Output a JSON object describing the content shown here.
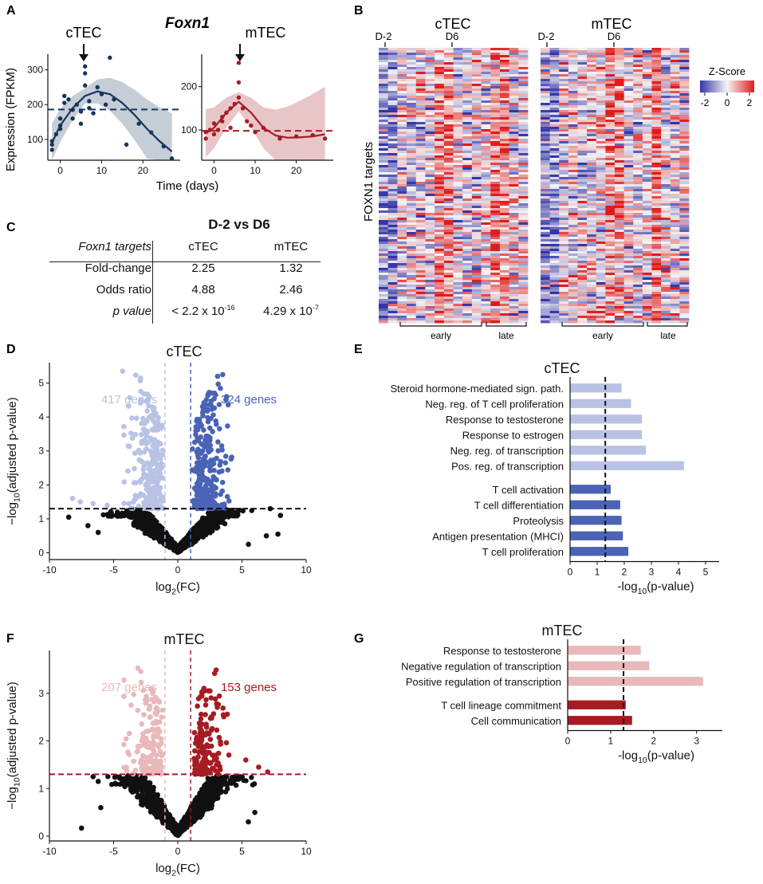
{
  "panels": {
    "A": {
      "letter": "A",
      "gene": "Foxn1",
      "ylabel": "Expression (FPKM)",
      "xlabel": "Time (days)",
      "cTEC": {
        "label": "cTEC",
        "color": "#17365d",
        "baseline": 186,
        "yticks": [
          100,
          200,
          300
        ],
        "ylim": [
          40,
          345
        ],
        "xticks": [
          0,
          10,
          20
        ],
        "xlim": [
          -3,
          29
        ],
        "points": [
          [
            -2,
            85
          ],
          [
            -2,
            70
          ],
          [
            -2,
            95
          ],
          [
            -1,
            115
          ],
          [
            0,
            140
          ],
          [
            0,
            130
          ],
          [
            0,
            160
          ],
          [
            1,
            205
          ],
          [
            1,
            225
          ],
          [
            2,
            215
          ],
          [
            3,
            185
          ],
          [
            3,
            160
          ],
          [
            4,
            200
          ],
          [
            5,
            180
          ],
          [
            5,
            145
          ],
          [
            6,
            310
          ],
          [
            6,
            290
          ],
          [
            6,
            255
          ],
          [
            7,
            210
          ],
          [
            7,
            190
          ],
          [
            8,
            175
          ],
          [
            9,
            250
          ],
          [
            10,
            230
          ],
          [
            11,
            200
          ],
          [
            12,
            335
          ],
          [
            13,
            215
          ],
          [
            16,
            85
          ],
          [
            19,
            145
          ],
          [
            22,
            120
          ],
          [
            25,
            80
          ],
          [
            27,
            45
          ]
        ],
        "fit": [
          [
            -2,
            90
          ],
          [
            0,
            140
          ],
          [
            3,
            190
          ],
          [
            6,
            225
          ],
          [
            9,
            238
          ],
          [
            12,
            230
          ],
          [
            15,
            205
          ],
          [
            18,
            170
          ],
          [
            21,
            130
          ],
          [
            24,
            95
          ],
          [
            27,
            65
          ]
        ]
      },
      "mTEC": {
        "label": "mTEC",
        "color": "#a51c24",
        "baseline": 98,
        "yticks": [
          100,
          200
        ],
        "ylim": [
          30,
          275
        ],
        "xticks": [
          0,
          10,
          20
        ],
        "xlim": [
          -3,
          29
        ],
        "points": [
          [
            -2,
            80
          ],
          [
            -2,
            95
          ],
          [
            -1,
            100
          ],
          [
            0,
            115
          ],
          [
            0,
            90
          ],
          [
            1,
            100
          ],
          [
            2,
            120
          ],
          [
            2,
            130
          ],
          [
            3,
            140
          ],
          [
            4,
            150
          ],
          [
            4,
            105
          ],
          [
            5,
            160
          ],
          [
            6,
            255
          ],
          [
            6,
            210
          ],
          [
            6,
            175
          ],
          [
            7,
            150
          ],
          [
            8,
            120
          ],
          [
            9,
            110
          ],
          [
            10,
            95
          ],
          [
            12,
            105
          ],
          [
            16,
            80
          ],
          [
            20,
            85
          ],
          [
            24,
            88
          ],
          [
            27,
            80
          ]
        ],
        "fit": [
          [
            -2,
            92
          ],
          [
            0,
            105
          ],
          [
            3,
            140
          ],
          [
            6,
            165
          ],
          [
            9,
            140
          ],
          [
            12,
            105
          ],
          [
            15,
            87
          ],
          [
            18,
            82
          ],
          [
            21,
            83
          ],
          [
            24,
            85
          ],
          [
            27,
            90
          ]
        ]
      },
      "arrow_label": "arrow"
    },
    "B": {
      "letter": "B",
      "cTEC_title": "cTEC",
      "mTEC_title": "mTEC",
      "tick_d2": "D-2",
      "tick_d6": "D6",
      "ylabel": "FOXN1 targets",
      "early": "early",
      "late": "late",
      "legend": {
        "title": "Z-Score",
        "ticks": [
          "-2",
          "0",
          "2"
        ],
        "colors": [
          "#3535a8",
          "#f4f4f4",
          "#e01b1b"
        ]
      }
    },
    "C": {
      "letter": "C",
      "title": "D-2 vs D6",
      "col0": "Foxn1 targets",
      "col1": "cTEC",
      "col2": "mTEC",
      "rows": [
        {
          "label": "Fold-change",
          "cTEC": "2.25",
          "mTEC": "1.32"
        },
        {
          "label": "Odds ratio",
          "cTEC": "4.88",
          "mTEC": "2.46"
        }
      ],
      "pval": {
        "label": "p value",
        "cTEC_base": "< 2.2 x 10",
        "cTEC_exp": "-16",
        "mTEC_base": "4.29 x 10",
        "mTEC_exp": "-7"
      }
    },
    "D": {
      "letter": "D"
    },
    "E": {
      "letter": "E"
    },
    "F": {
      "letter": "F"
    },
    "G": {
      "letter": "G"
    }
  },
  "chart_data": [
    {
      "id": "volcano-ctec",
      "type": "scatter",
      "title": "cTEC",
      "xlabel": "log2(FC)",
      "ylabel": "-log10(adjusted p-value)",
      "xlim": [
        -10,
        10
      ],
      "ylim": [
        -0.2,
        5.6
      ],
      "xticks": [
        -10,
        -5,
        0,
        5,
        10
      ],
      "yticks": [
        0,
        1,
        2,
        3,
        4,
        5
      ],
      "threshold_y": 1.3,
      "fc_left": -1,
      "fc_right": 1,
      "down_label": "417 genes",
      "up_label": "324 genes",
      "down_color": "#b8c2e4",
      "up_color": "#4a63b4",
      "dim_color": "#111111",
      "extra_points": [
        [
          -4.3,
          5.35
        ],
        [
          -8.2,
          1.6
        ],
        [
          -7.6,
          1.5
        ],
        [
          -6.6,
          1.45
        ],
        [
          -5.5,
          1.4
        ],
        [
          -8.5,
          1.05
        ],
        [
          3.5,
          5.25
        ],
        [
          3.1,
          5.2
        ],
        [
          3.8,
          4.6
        ],
        [
          6.9,
          0.5
        ],
        [
          7.8,
          0.55
        ],
        [
          8.0,
          1.1
        ],
        [
          7.2,
          1.3
        ],
        [
          -6.2,
          0.6
        ],
        [
          -7,
          0.8
        ],
        [
          5.5,
          0.25
        ]
      ]
    },
    {
      "id": "go-ctec",
      "type": "bar",
      "orientation": "horizontal",
      "title": "cTEC",
      "xlabel": "-log10(p-value)",
      "xlim": [
        0,
        5.5
      ],
      "xticks": [
        0,
        1,
        2,
        3,
        4,
        5
      ],
      "threshold": 1.3,
      "series": [
        {
          "name": "down",
          "color": "#b8c2e4",
          "categories": [
            "Steroid hormone-mediated sign. path.",
            "Neg. reg. of T cell proliferation",
            "Response to testosterone",
            "Response to estrogen",
            "Neg. reg. of transcription",
            "Pos. reg. of transcription"
          ],
          "values": [
            1.9,
            2.25,
            2.65,
            2.65,
            2.8,
            4.2
          ]
        },
        {
          "name": "up",
          "color": "#4a63b4",
          "categories": [
            "T cell activation",
            "T cell differentiation",
            "Proteolysis",
            "Antigen presentation (MHCI)",
            "T cell proliferation"
          ],
          "values": [
            1.5,
            1.85,
            1.9,
            1.95,
            2.15
          ]
        }
      ]
    },
    {
      "id": "volcano-mtec",
      "type": "scatter",
      "title": "mTEC",
      "xlabel": "log2(FC)",
      "ylabel": "-log10(adjusted p-value)",
      "xlim": [
        -10,
        10
      ],
      "ylim": [
        -0.1,
        3.9
      ],
      "xticks": [
        -10,
        -5,
        0,
        5,
        10
      ],
      "yticks": [
        0,
        1,
        2,
        3
      ],
      "threshold_y": 1.3,
      "fc_left": -1,
      "fc_right": 1,
      "down_label": "207 genes",
      "up_label": "153 genes",
      "down_color": "#e8b8ba",
      "up_color": "#a51c24",
      "dim_color": "#111111",
      "extra_points": [
        [
          -7.5,
          0.17
        ],
        [
          -6.6,
          1.25
        ],
        [
          -6.2,
          1.15
        ],
        [
          5.3,
          1.6
        ],
        [
          6.3,
          1.45
        ],
        [
          7.0,
          1.35
        ],
        [
          6.0,
          0.5
        ],
        [
          -6,
          0.6
        ],
        [
          5.5,
          0.3
        ]
      ]
    },
    {
      "id": "go-mtec",
      "type": "bar",
      "orientation": "horizontal",
      "title": "mTEC",
      "xlabel": "-log10(p-value)",
      "xlim": [
        0,
        3.6
      ],
      "xticks": [
        0,
        1,
        2,
        3
      ],
      "threshold": 1.3,
      "series": [
        {
          "name": "down",
          "color": "#e8b8ba",
          "categories": [
            "Response to testosterone",
            "Negative regulation of transcription",
            "Positive regulation of transcription"
          ],
          "values": [
            1.7,
            1.9,
            3.15
          ]
        },
        {
          "name": "up",
          "color": "#a51c24",
          "categories": [
            "T cell lineage commitment",
            "Cell communication"
          ],
          "values": [
            1.35,
            1.5
          ]
        }
      ]
    }
  ]
}
